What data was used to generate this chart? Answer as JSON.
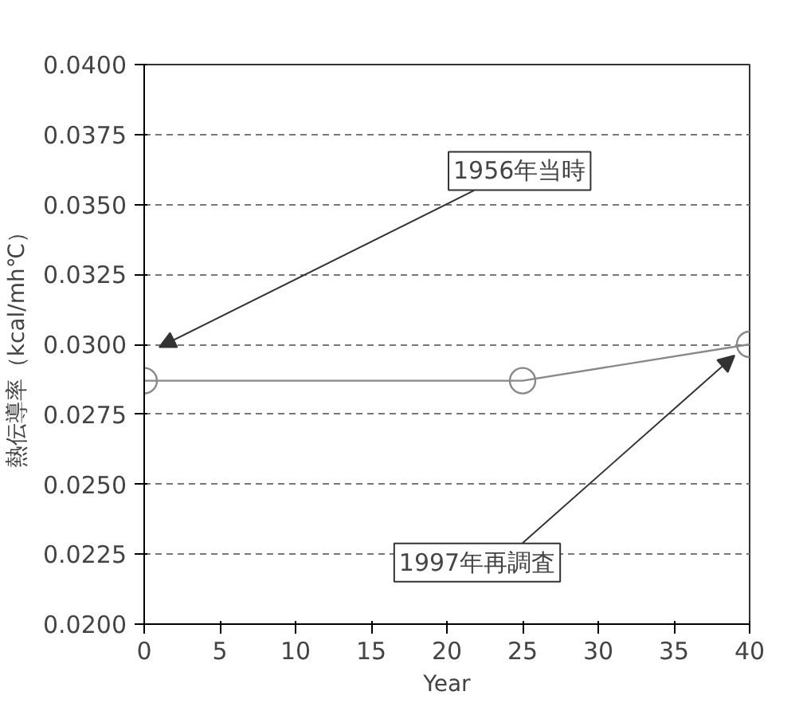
{
  "chart_data": {
    "type": "line",
    "xlabel": "Year",
    "ylabel": "熱伝導率（kcal/mh℃）",
    "x": [
      0,
      25,
      40
    ],
    "series": [
      {
        "color": "#888888",
        "values": [
          0.0287,
          0.0287,
          0.03
        ]
      }
    ],
    "xlim": [
      0,
      40
    ],
    "xticks": [
      0,
      5,
      10,
      15,
      20,
      25,
      30,
      35,
      40
    ],
    "ylim": [
      0.02,
      0.04
    ],
    "yticks": [
      {
        "value": 0.02,
        "label": "0.0200"
      },
      {
        "value": 0.0225,
        "label": "0.0225"
      },
      {
        "value": 0.025,
        "label": "0.0250"
      },
      {
        "value": 0.0275,
        "label": "0.0275"
      },
      {
        "value": 0.03,
        "label": "0.0300"
      },
      {
        "value": 0.0325,
        "label": "0.0325"
      },
      {
        "value": 0.035,
        "label": "0.0350"
      },
      {
        "value": 0.0375,
        "label": "0.0375"
      },
      {
        "value": 0.04,
        "label": "0.0400"
      }
    ],
    "grid": "y",
    "marker": "circle",
    "line_style": "solid",
    "annotations": [
      "1956年当時",
      "1997年再調査"
    ]
  }
}
